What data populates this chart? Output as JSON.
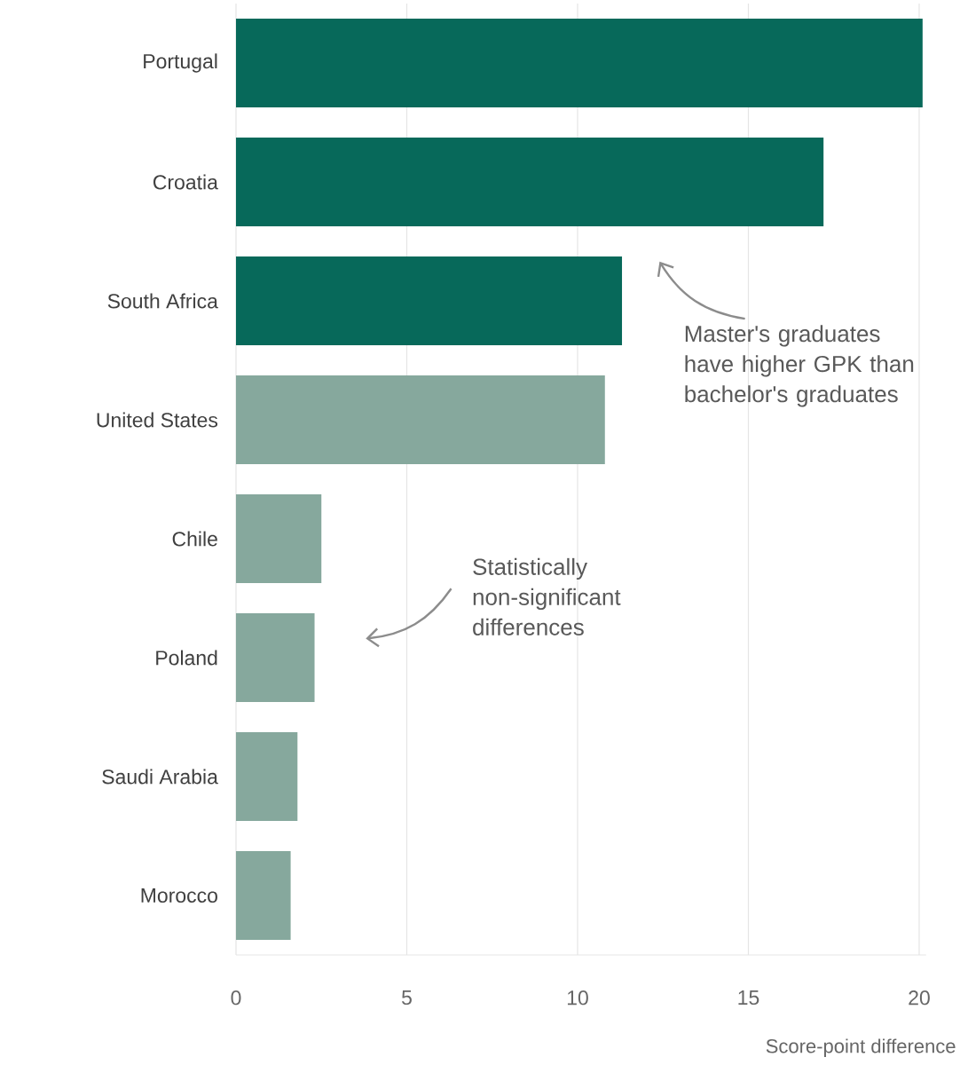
{
  "chart_data": {
    "type": "bar",
    "orientation": "horizontal",
    "xlabel": "Score-point difference",
    "categories": [
      "Portugal",
      "Croatia",
      "South Africa",
      "United States",
      "Chile",
      "Poland",
      "Saudi Arabia",
      "Morocco"
    ],
    "values": [
      20.1,
      17.2,
      11.3,
      10.8,
      2.5,
      2.3,
      1.8,
      1.6
    ],
    "colors": [
      "#07695a",
      "#07695a",
      "#07695a",
      "#86a89d",
      "#86a89d",
      "#86a89d",
      "#86a89d",
      "#86a89d"
    ],
    "xlim": [
      0,
      20.2
    ],
    "xticks": [
      0,
      5,
      10,
      15,
      20
    ],
    "grid": "x",
    "annotations": [
      "Master's graduates have higher GPK than bachelor's graduates",
      "Statistically non-significant differences"
    ]
  }
}
